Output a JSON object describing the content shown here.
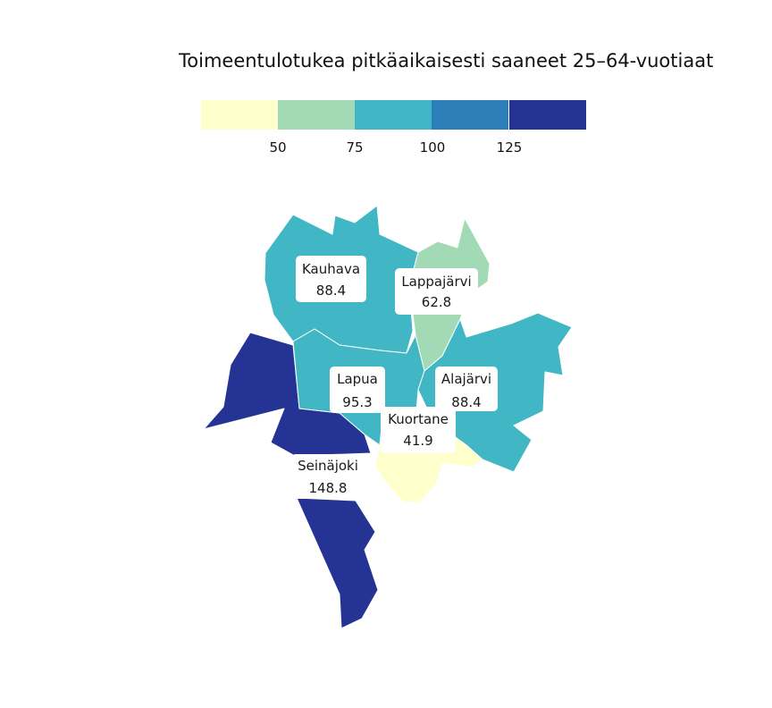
{
  "title": "Toimeentulotukea pitkäaikaisesti saaneet 25–64-vuotiaat",
  "legend": {
    "colors": [
      "#ffffcc",
      "#a1dab4",
      "#41b6c4",
      "#2c7fb8",
      "#253494"
    ],
    "ticks": [
      "50",
      "75",
      "100",
      "125"
    ]
  },
  "regions": [
    {
      "id": "kauhava",
      "name": "Kauhava",
      "value": "88.4",
      "color": "#41b6c4"
    },
    {
      "id": "lappajarvi",
      "name": "Lappajärvi",
      "value": "62.8",
      "color": "#a1dab4"
    },
    {
      "id": "lapua",
      "name": "Lapua",
      "value": "95.3",
      "color": "#41b6c4"
    },
    {
      "id": "alajarvi",
      "name": "Alajärvi",
      "value": "88.4",
      "color": "#41b6c4"
    },
    {
      "id": "kuortane",
      "name": "Kuortane",
      "value": "41.9",
      "color": "#ffffcc"
    },
    {
      "id": "seinajoki",
      "name": "Seinäjoki",
      "value": "148.8",
      "color": "#253494"
    }
  ]
}
